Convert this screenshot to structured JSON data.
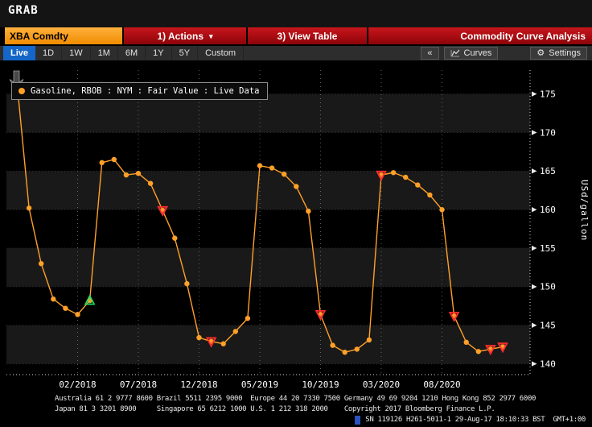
{
  "window": {
    "title": "GRAB"
  },
  "toolbar": {
    "security": "XBA Comdty",
    "actions_label": "1) Actions",
    "actions_caret": "▾",
    "view_table_label": "3) View Table",
    "app_title": "Commodity Curve Analysis"
  },
  "tabs": {
    "items": [
      "Live",
      "1D",
      "1W",
      "1M",
      "6M",
      "1Y",
      "5Y",
      "Custom"
    ],
    "selected": "Live",
    "collapse_label": "«",
    "curves_label": "Curves",
    "settings_label": "Settings",
    "settings_icon": "⚙"
  },
  "legend": {
    "label": "Gasoline, RBOB : NYM : Fair Value : Live Data",
    "series_color": "#ffa028"
  },
  "chart_data": {
    "type": "line",
    "title": "Gasoline, RBOB : NYM : Fair Value : Live Data",
    "xlabel": "",
    "ylabel": "USd/gallon",
    "ylim": [
      138.6,
      178.1
    ],
    "yticks": [
      140,
      145,
      150,
      155,
      160,
      165,
      170,
      175
    ],
    "xtick_labels": [
      "02/2018",
      "07/2018",
      "12/2018",
      "05/2019",
      "10/2019",
      "03/2020",
      "08/2020"
    ],
    "xtick_indices": [
      5,
      10,
      15,
      20,
      25,
      30,
      35
    ],
    "x": [
      "09/2017",
      "10/2017",
      "11/2017",
      "12/2017",
      "01/2018",
      "02/2018",
      "03/2018",
      "04/2018",
      "05/2018",
      "06/2018",
      "07/2018",
      "08/2018",
      "09/2018",
      "10/2018",
      "11/2018",
      "12/2018",
      "01/2019",
      "02/2019",
      "03/2019",
      "04/2019",
      "05/2019",
      "06/2019",
      "07/2019",
      "08/2019",
      "09/2019",
      "10/2019",
      "11/2019",
      "12/2019",
      "01/2020",
      "02/2020",
      "03/2020",
      "04/2020",
      "05/2020",
      "06/2020",
      "07/2020",
      "08/2020",
      "09/2020",
      "10/2020",
      "11/2020",
      "12/2020",
      "01/2021"
    ],
    "series": [
      {
        "name": "Gasoline, RBOB : NYM : Fair Value : Live Data",
        "values": [
          176.6,
          160.2,
          153.0,
          148.4,
          147.2,
          146.4,
          148.2,
          166.1,
          166.5,
          164.5,
          164.7,
          163.4,
          159.9,
          156.3,
          150.4,
          143.4,
          142.9,
          142.6,
          144.2,
          145.9,
          165.7,
          165.4,
          164.6,
          163.0,
          159.8,
          146.4,
          142.4,
          141.5,
          141.9,
          143.1,
          164.5,
          164.8,
          164.2,
          163.2,
          161.9,
          160.0,
          146.2,
          142.8,
          141.6,
          141.9,
          142.2
        ]
      }
    ],
    "markers": {
      "red_down_indices": [
        12,
        16,
        25,
        30,
        36,
        39,
        40
      ],
      "green_up_indices": [
        6
      ]
    },
    "line_color": "#ffa028",
    "marker_red_color": "#ff2d2d",
    "marker_green_color": "#22dd66",
    "shaded_bands": [
      [
        140,
        145
      ],
      [
        150,
        155
      ],
      [
        160,
        165
      ],
      [
        170,
        175
      ]
    ],
    "grid": "dashed vertical gridlines at x ticks; dotted horizontal lines at y ticks; alternating shaded horizontal bands; dotted white frame on right and bottom",
    "legend_position": "top-left"
  },
  "footer": {
    "line1": "Australia 61 2 9777 8600 Brazil 5511 2395 9000  Europe 44 20 7330 7500 Germany 49 69 9204 1210 Hong Kong 852 2977 6000",
    "line2": "Japan 81 3 3201 8900     Singapore 65 6212 1000 U.S. 1 212 318 2000    Copyright 2017 Bloomberg Finance L.P.",
    "line3": "SN 119126 H261-5011-1 29-Aug-17 18:10:33 BST  GMT+1:00"
  },
  "colors": {
    "accent_orange": "#f79400",
    "toolbar_red": "#a40508",
    "tab_selected_blue": "#1466c8",
    "band_shade": "#191919",
    "axis_text": "#ffffff",
    "cursor_blue": "#2a52be"
  }
}
